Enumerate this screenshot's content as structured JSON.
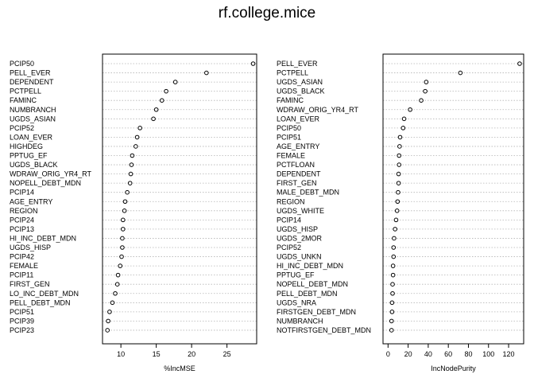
{
  "chart_data": {
    "title": "rf.college.mice",
    "panels": [
      {
        "type": "scatter",
        "xlabel": "%IncMSE",
        "xlim": [
          7.4,
          29.2
        ],
        "xticks": [
          10,
          15,
          20,
          25
        ],
        "labels": [
          "PCIP50",
          "PELL_EVER",
          "DEPENDENT",
          "PCTPELL",
          "FAMINC",
          "NUMBRANCH",
          "UGDS_ASIAN",
          "PCIP52",
          "LOAN_EVER",
          "HIGHDEG",
          "PPTUG_EF",
          "UGDS_BLACK",
          "WDRAW_ORIG_YR4_RT",
          "NOPELL_DEBT_MDN",
          "PCIP14",
          "AGE_ENTRY",
          "REGION",
          "PCIP24",
          "PCIP13",
          "HI_INC_DEBT_MDN",
          "UGDS_HISP",
          "PCIP42",
          "FEMALE",
          "PCIP11",
          "FIRST_GEN",
          "LO_INC_DEBT_MDN",
          "PELL_DEBT_MDN",
          "PCIP51",
          "PCIP39",
          "PCIP23"
        ],
        "values": [
          28.7,
          22.1,
          17.7,
          16.4,
          15.8,
          15.0,
          14.6,
          12.7,
          12.3,
          12.1,
          11.6,
          11.5,
          11.4,
          11.3,
          10.9,
          10.6,
          10.5,
          10.3,
          10.3,
          10.2,
          10.2,
          10.1,
          9.9,
          9.6,
          9.5,
          9.2,
          8.8,
          8.4,
          8.2,
          8.1
        ]
      },
      {
        "type": "scatter",
        "xlabel": "IncNodePurity",
        "xlim": [
          -5,
          135
        ],
        "xticks": [
          0,
          20,
          40,
          60,
          80,
          100,
          120
        ],
        "labels": [
          "PELL_EVER",
          "PCTPELL",
          "UGDS_ASIAN",
          "UGDS_BLACK",
          "FAMINC",
          "WDRAW_ORIG_YR4_RT",
          "LOAN_EVER",
          "PCIP50",
          "PCIP51",
          "AGE_ENTRY",
          "FEMALE",
          "PCTFLOAN",
          "DEPENDENT",
          "FIRST_GEN",
          "MALE_DEBT_MDN",
          "REGION",
          "UGDS_WHITE",
          "PCIP14",
          "UGDS_HISP",
          "UGDS_2MOR",
          "PCIP52",
          "UGDS_UNKN",
          "HI_INC_DEBT_MDN",
          "PPTUG_EF",
          "NOPELL_DEBT_MDN",
          "PELL_DEBT_MDN",
          "UGDS_NRA",
          "FIRSTGEN_DEBT_MDN",
          "NUMBRANCH",
          "NOTFIRSTGEN_DEBT_MDN"
        ],
        "values": [
          131,
          72,
          38,
          37,
          33,
          22,
          16,
          15,
          12,
          11.5,
          11,
          11,
          10.5,
          10.5,
          10,
          9.5,
          9,
          8,
          7,
          6,
          5.5,
          5.5,
          5,
          5,
          4.5,
          4.5,
          4,
          4,
          3.5,
          3.5
        ]
      }
    ]
  }
}
